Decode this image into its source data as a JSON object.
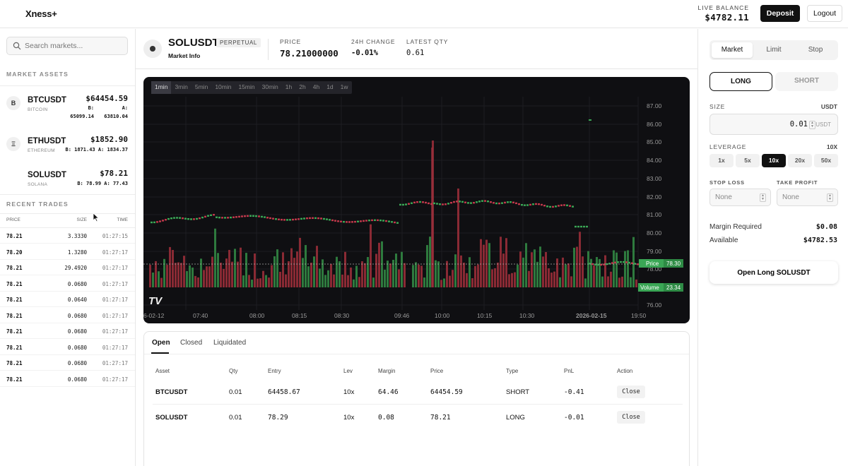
{
  "header": {
    "logo": "Xness+",
    "balance_label": "LIVE BALANCE",
    "balance_value": "$4782.11",
    "deposit_label": "Deposit",
    "logout_label": "Logout"
  },
  "sidebar": {
    "search_placeholder": "Search markets...",
    "assets_title": "MARKET ASSETS",
    "assets": [
      {
        "icon": "B",
        "symbol": "BTCUSDT",
        "name": "BITCOIN",
        "price": "$64454.59",
        "bid_label": "B:",
        "bid": "65099.14",
        "ask_label": "A:",
        "ask": "63810.04"
      },
      {
        "icon": "Ξ",
        "symbol": "ETHUSDT",
        "name": "ETHEREUM",
        "price": "$1852.90",
        "bid_ask": "B: 1871.43 A: 1834.37"
      },
      {
        "icon": "",
        "symbol": "SOLUSDT",
        "name": "SOLANA",
        "price": "$78.21",
        "bid_ask": "B: 78.99 A: 77.43"
      }
    ],
    "trades_title": "RECENT TRADES",
    "trades_headers": {
      "price": "PRICE",
      "size": "SIZE",
      "time": "TIME"
    },
    "trades": [
      {
        "price": "78.21",
        "size": "3.3330",
        "time": "01:27:15"
      },
      {
        "price": "78.20",
        "size": "1.3280",
        "time": "01:27:17"
      },
      {
        "price": "78.21",
        "size": "29.4920",
        "time": "01:27:17"
      },
      {
        "price": "78.21",
        "size": "0.0680",
        "time": "01:27:17"
      },
      {
        "price": "78.21",
        "size": "0.0640",
        "time": "01:27:17"
      },
      {
        "price": "78.21",
        "size": "0.0680",
        "time": "01:27:17"
      },
      {
        "price": "78.21",
        "size": "0.0680",
        "time": "01:27:17"
      },
      {
        "price": "78.21",
        "size": "0.0680",
        "time": "01:27:17"
      },
      {
        "price": "78.21",
        "size": "0.0680",
        "time": "01:27:17"
      },
      {
        "price": "78.21",
        "size": "0.0680",
        "time": "01:27:17"
      }
    ]
  },
  "market": {
    "symbol": "SOLUSDT",
    "badge": "PERPETUAL",
    "info_label": "Market Info",
    "price_label": "PRICE",
    "price": "78.21000000",
    "change_label": "24H CHANGE",
    "change": "-0.01%",
    "qty_label": "LATEST QTY",
    "qty": "0.61"
  },
  "chart_data": {
    "type": "candlestick",
    "timeframes": [
      "1min",
      "3min",
      "5min",
      "10min",
      "15min",
      "30min",
      "1h",
      "2h",
      "4h",
      "1d",
      "1w"
    ],
    "active_timeframe": "1min",
    "y_ticks": [
      "87.00",
      "86.00",
      "85.00",
      "84.00",
      "83.00",
      "82.00",
      "81.00",
      "80.00",
      "79.00",
      "78.00",
      "76.00"
    ],
    "x_ticks": [
      "6-02-12",
      "07:40",
      "08:00",
      "08:15",
      "08:30",
      "09:46",
      "10:00",
      "10:15",
      "10:30",
      "2026-02-15",
      "19:50"
    ],
    "price_label": "Price",
    "price_value": "78.30",
    "volume_label": "Volume",
    "volume_value": "23.34",
    "watermark": "TV"
  },
  "orders": {
    "tabs": [
      "Open",
      "Closed",
      "Liquidated"
    ],
    "headers": [
      "Asset",
      "Qty",
      "Entry",
      "Lev",
      "Margin",
      "Price",
      "Type",
      "PnL",
      "Action"
    ],
    "rows": [
      {
        "asset": "BTCUSDT",
        "qty": "0.01",
        "entry": "64458.67",
        "lev": "10x",
        "margin": "64.46",
        "price": "64454.59",
        "type": "SHORT",
        "pnl": "-0.41",
        "action": "Close"
      },
      {
        "asset": "SOLUSDT",
        "qty": "0.01",
        "entry": "78.29",
        "lev": "10x",
        "margin": "0.08",
        "price": "78.21",
        "type": "LONG",
        "pnl": "-0.01",
        "action": "Close"
      }
    ]
  },
  "trade_panel": {
    "order_types": [
      "Market",
      "Limit",
      "Stop"
    ],
    "long_label": "LONG",
    "short_label": "SHORT",
    "size_label": "SIZE",
    "size_unit": "USDT",
    "size_value": "0.01",
    "size_suffix": "USDT",
    "leverage_label": "LEVERAGE",
    "leverage_value": "10X",
    "leverage_options": [
      "1x",
      "5x",
      "10x",
      "20x",
      "50x"
    ],
    "stop_loss_label": "STOP LOSS",
    "take_profit_label": "TAKE PROFIT",
    "stop_loss_value": "None",
    "take_profit_value": "None",
    "margin_label": "Margin Required",
    "margin_value": "$0.08",
    "available_label": "Available",
    "available_value": "$4782.53",
    "submit_label": "Open Long SOLUSDT"
  }
}
